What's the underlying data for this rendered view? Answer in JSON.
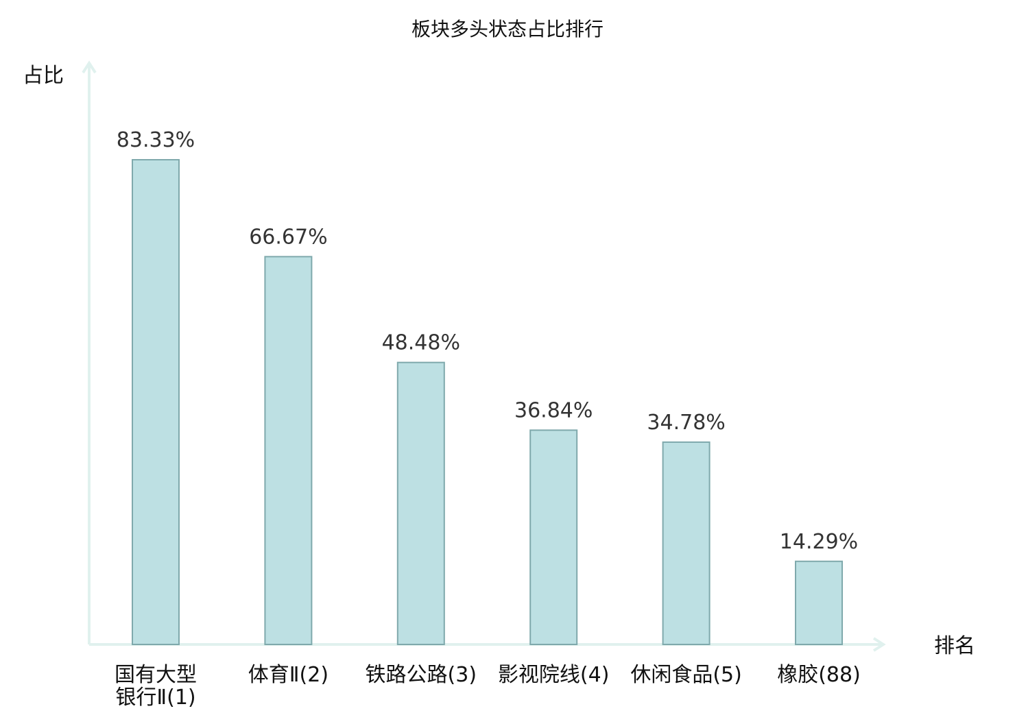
{
  "chart_data": {
    "type": "bar",
    "title": "板块多头状态占比排行",
    "xlabel": "排名",
    "ylabel": "占比",
    "ylim": [
      0,
      100
    ],
    "grid": false,
    "categories": [
      {
        "lines": [
          "国有大型",
          "银行Ⅱ(1)"
        ],
        "highlight": false
      },
      {
        "lines": [
          "体育Ⅱ(2)"
        ],
        "highlight": false
      },
      {
        "lines": [
          "铁路公路(3)"
        ],
        "highlight": false
      },
      {
        "lines": [
          "影视院线(4)"
        ],
        "highlight": false
      },
      {
        "lines": [
          "休闲食品(5)"
        ],
        "highlight": false
      },
      {
        "lines": [
          "橡胶(88)"
        ],
        "highlight": true
      }
    ],
    "values": [
      83.33,
      66.67,
      48.48,
      36.84,
      34.78,
      14.29
    ],
    "value_labels": [
      "83.33%",
      "66.67%",
      "48.48%",
      "36.84%",
      "34.78%",
      "14.29%"
    ],
    "colors": {
      "bar_fill": "#bde0e3",
      "bar_stroke": "#7fa9ac",
      "axis": "#e0f1ee",
      "highlight_text": "#e0191f",
      "text": "#111111",
      "value_text": "#333333"
    }
  }
}
